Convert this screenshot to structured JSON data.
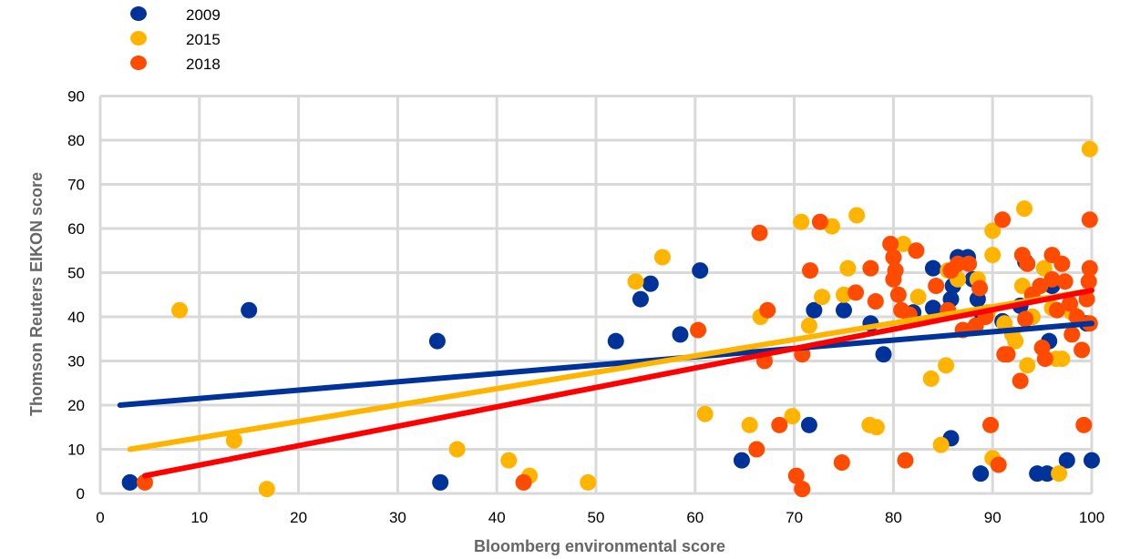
{
  "chart_data": {
    "type": "scatter",
    "title": "",
    "xlabel": "Bloomberg environmental score",
    "ylabel": "Thomson Reuters EIKON score",
    "xlim": [
      0,
      100
    ],
    "ylim": [
      0,
      90
    ],
    "xticks": [
      0,
      10,
      20,
      30,
      40,
      50,
      60,
      70,
      80,
      90,
      100
    ],
    "yticks": [
      0,
      10,
      20,
      30,
      40,
      50,
      60,
      70,
      80,
      90
    ],
    "xtick_labels": [
      "0",
      "10",
      "20",
      "30",
      "40",
      "50",
      "60",
      "70",
      "80",
      "90",
      "100"
    ],
    "ytick_labels": [
      "0",
      "10",
      "20",
      "30",
      "40",
      "50",
      "60",
      "70",
      "80",
      "90"
    ],
    "grid": true,
    "legend_position": "top-left",
    "series": [
      {
        "name": "2009",
        "color": "#003399",
        "trend_color": "#003399",
        "trend": [
          [
            2,
            20
          ],
          [
            100,
            38.5
          ]
        ],
        "points": [
          [
            3,
            2.5
          ],
          [
            15,
            41.5
          ],
          [
            34,
            34.5
          ],
          [
            34.3,
            2.5
          ],
          [
            52,
            34.5
          ],
          [
            54.5,
            44
          ],
          [
            55.5,
            47.5
          ],
          [
            58.5,
            36
          ],
          [
            60.5,
            50.5
          ],
          [
            64.7,
            7.5
          ],
          [
            71.5,
            15.5
          ],
          [
            72,
            41.5
          ],
          [
            75,
            41.5
          ],
          [
            77.7,
            38.5
          ],
          [
            79,
            31.5
          ],
          [
            82,
            41
          ],
          [
            84,
            42
          ],
          [
            84,
            51
          ],
          [
            85.8,
            44
          ],
          [
            86,
            47
          ],
          [
            85.8,
            12.5
          ],
          [
            86.5,
            53.5
          ],
          [
            87.5,
            53.5
          ],
          [
            88,
            48.5
          ],
          [
            88.5,
            44
          ],
          [
            88.8,
            4.5
          ],
          [
            89,
            40
          ],
          [
            91,
            39
          ],
          [
            92.8,
            42.5
          ],
          [
            93.3,
            52.5
          ],
          [
            94,
            40
          ],
          [
            94.5,
            4.5
          ],
          [
            95.5,
            4.5
          ],
          [
            95.7,
            34.5
          ],
          [
            96,
            47
          ],
          [
            97.5,
            7.5
          ],
          [
            99.5,
            38.5
          ],
          [
            100,
            7.5
          ]
        ]
      },
      {
        "name": "2015",
        "color": "#FFB400",
        "trend_color": "#FFB400",
        "trend": [
          [
            3,
            10
          ],
          [
            100,
            46
          ]
        ],
        "points": [
          [
            8,
            41.5
          ],
          [
            13.5,
            12
          ],
          [
            16.8,
            1
          ],
          [
            36,
            10
          ],
          [
            41.2,
            7.5
          ],
          [
            43.3,
            4
          ],
          [
            49.2,
            2.5
          ],
          [
            54,
            48
          ],
          [
            56.7,
            53.5
          ],
          [
            61,
            18
          ],
          [
            65.5,
            15.5
          ],
          [
            66.6,
            40
          ],
          [
            69.8,
            17.5
          ],
          [
            70.7,
            61.5
          ],
          [
            71.5,
            38
          ],
          [
            72.8,
            44.5
          ],
          [
            73.8,
            60.5
          ],
          [
            75,
            45
          ],
          [
            75.4,
            51
          ],
          [
            76.3,
            63
          ],
          [
            77.6,
            15.5
          ],
          [
            78.3,
            15
          ],
          [
            81,
            56.5
          ],
          [
            82.5,
            44.5
          ],
          [
            83.8,
            26
          ],
          [
            84.8,
            11
          ],
          [
            85.3,
            29
          ],
          [
            85.5,
            50.5
          ],
          [
            86.5,
            48.5
          ],
          [
            88.5,
            48.5
          ],
          [
            89.5,
            41
          ],
          [
            90,
            59.5
          ],
          [
            90,
            54
          ],
          [
            90,
            8
          ],
          [
            91.2,
            38.5
          ],
          [
            92,
            36
          ],
          [
            92.3,
            34.5
          ],
          [
            93.2,
            64.5
          ],
          [
            93,
            47
          ],
          [
            93.5,
            29
          ],
          [
            94,
            40
          ],
          [
            95.2,
            51
          ],
          [
            96,
            42
          ],
          [
            96.4,
            30.5
          ],
          [
            96.7,
            4.5
          ],
          [
            97,
            30.5
          ],
          [
            98,
            41
          ],
          [
            99.8,
            78
          ]
        ]
      },
      {
        "name": "2018",
        "color": "#FF4B00",
        "trend_color": "#FF0000",
        "trend": [
          [
            4.5,
            4
          ],
          [
            100,
            46
          ]
        ],
        "points": [
          [
            4.5,
            2.5
          ],
          [
            42.7,
            2.5
          ],
          [
            60.3,
            37
          ],
          [
            66.2,
            10
          ],
          [
            66.5,
            59
          ],
          [
            67,
            30
          ],
          [
            67.3,
            41.5
          ],
          [
            68.5,
            15.5
          ],
          [
            70.2,
            4
          ],
          [
            70.8,
            1
          ],
          [
            70.8,
            31.5
          ],
          [
            71.6,
            50.5
          ],
          [
            72.6,
            61.5
          ],
          [
            74.8,
            7
          ],
          [
            76.2,
            45.5
          ],
          [
            77.7,
            51
          ],
          [
            78.2,
            43.5
          ],
          [
            79.7,
            56.5
          ],
          [
            80,
            53.5
          ],
          [
            80,
            48.5
          ],
          [
            80.2,
            50.5
          ],
          [
            80.5,
            45
          ],
          [
            80.8,
            41.5
          ],
          [
            81.2,
            7.5
          ],
          [
            81.6,
            40.5
          ],
          [
            82.3,
            55
          ],
          [
            84.3,
            47
          ],
          [
            85.5,
            41.5
          ],
          [
            85.8,
            50.5
          ],
          [
            86.5,
            52
          ],
          [
            87,
            37
          ],
          [
            87.6,
            52
          ],
          [
            88.3,
            38
          ],
          [
            88.7,
            46.5
          ],
          [
            89.3,
            40
          ],
          [
            89.8,
            15.5
          ],
          [
            90.6,
            6.5
          ],
          [
            91,
            62
          ],
          [
            91.2,
            31.5
          ],
          [
            91.5,
            31.5
          ],
          [
            92.8,
            25.5
          ],
          [
            93,
            54
          ],
          [
            93.3,
            39.5
          ],
          [
            93.5,
            52
          ],
          [
            94,
            45
          ],
          [
            94.8,
            47
          ],
          [
            95,
            33
          ],
          [
            95.3,
            30.5
          ],
          [
            96,
            54
          ],
          [
            96,
            48.5
          ],
          [
            96.5,
            41.5
          ],
          [
            97,
            52
          ],
          [
            97.3,
            48
          ],
          [
            97.8,
            43
          ],
          [
            98,
            36
          ],
          [
            98.5,
            40
          ],
          [
            99,
            32.5
          ],
          [
            99.2,
            15.5
          ],
          [
            99.5,
            44
          ],
          [
            99.7,
            48
          ],
          [
            99.8,
            62
          ],
          [
            99.8,
            51
          ],
          [
            99.8,
            38.5
          ]
        ]
      }
    ]
  }
}
